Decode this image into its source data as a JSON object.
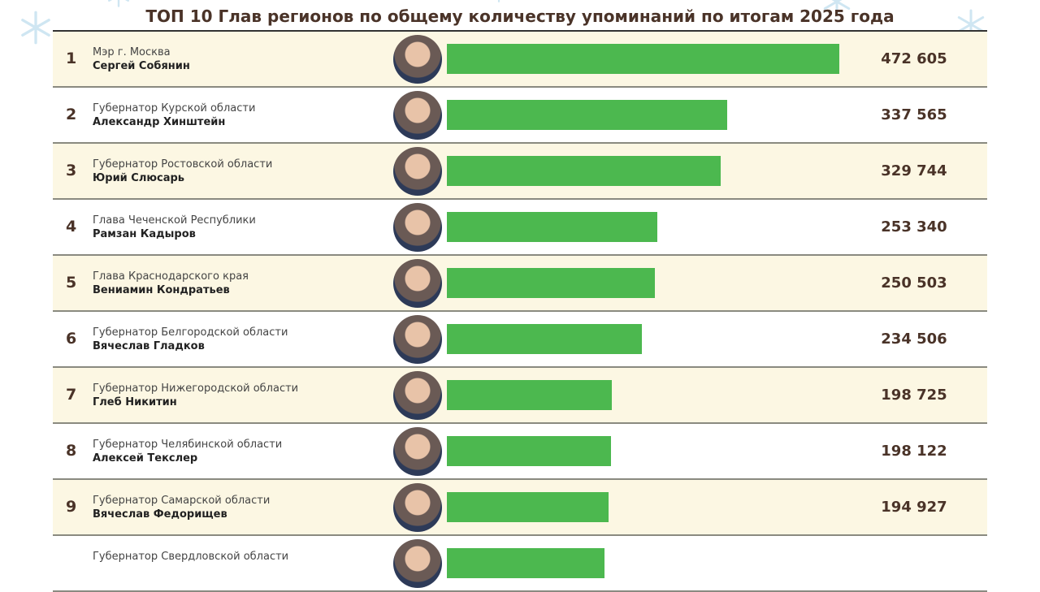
{
  "chart_data": {
    "type": "bar",
    "orientation": "horizontal",
    "title": "ТОП 10 Глав регионов по общему количеству упоминаний по итогам 2025 года",
    "xlim": [
      0,
      472605
    ],
    "rows": [
      {
        "rank": "1",
        "position": "Мэр г. Москва",
        "name": "Сергей Собянин",
        "value": 472605,
        "label": "472 605"
      },
      {
        "rank": "2",
        "position": "Губернатор Курской области",
        "name": "Александр Хинштейн",
        "value": 337565,
        "label": "337 565"
      },
      {
        "rank": "3",
        "position": "Губернатор Ростовской области",
        "name": "Юрий Слюсарь",
        "value": 329744,
        "label": "329 744"
      },
      {
        "rank": "4",
        "position": "Глава Чеченской Республики",
        "name": "Рамзан Кадыров",
        "value": 253340,
        "label": "253 340"
      },
      {
        "rank": "5",
        "position": "Глава Краснодарского края",
        "name": "Вениамин Кондратьев",
        "value": 250503,
        "label": "250 503"
      },
      {
        "rank": "6",
        "position": "Губернатор Белгородской области",
        "name": "Вячеслав Гладков",
        "value": 234506,
        "label": "234 506"
      },
      {
        "rank": "7",
        "position": "Губернатор Нижегородской области",
        "name": "Глеб Никитин",
        "value": 198725,
        "label": "198 725"
      },
      {
        "rank": "8",
        "position": "Губернатор Челябинской области",
        "name": "Алексей Текслер",
        "value": 198122,
        "label": "198 122"
      },
      {
        "rank": "9",
        "position": "Губернатор Самарской области",
        "name": "Вячеслав Федорищев",
        "value": 194927,
        "label": "194 927"
      },
      {
        "rank": "",
        "position": "Губернатор Свердловской области",
        "name": "",
        "value": 190000,
        "label": ""
      }
    ],
    "colors": {
      "bar": "#4cb84f",
      "odd_row": "#fcf7e3",
      "text": "#4a3328"
    }
  }
}
